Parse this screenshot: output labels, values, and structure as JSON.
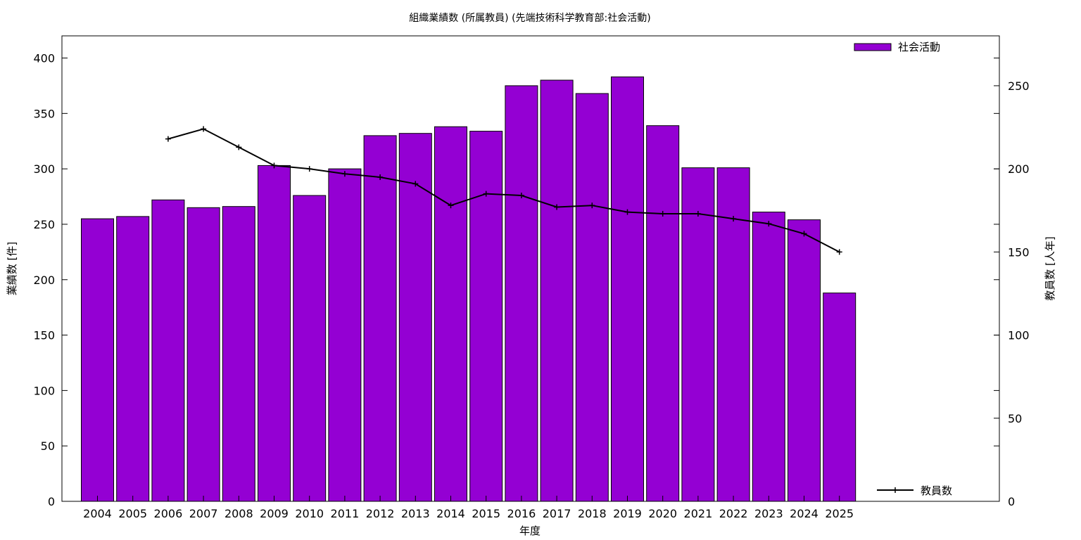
{
  "chart_data": {
    "type": "bar",
    "title": "組織業績数 (所属教員) (先端技術科学教育部:社会活動)",
    "xlabel": "年度",
    "ylabel": "業績数 [件]",
    "y2label": "教員数 [人年]",
    "categories": [
      "2004",
      "2005",
      "2006",
      "2007",
      "2008",
      "2009",
      "2010",
      "2011",
      "2012",
      "2013",
      "2014",
      "2015",
      "2016",
      "2017",
      "2018",
      "2019",
      "2020",
      "2021",
      "2022",
      "2023",
      "2024",
      "2025"
    ],
    "ylim": [
      0,
      420
    ],
    "y2lim": [
      0,
      280
    ],
    "yticks": [
      0,
      50,
      100,
      150,
      200,
      250,
      300,
      350,
      400
    ],
    "y2ticks": [
      0,
      50,
      100,
      150,
      200,
      250
    ],
    "grid": false,
    "legend_position": "top-right (bars), bottom-right (line)",
    "series": [
      {
        "name": "社会活動",
        "type": "bar",
        "axis": "left",
        "color": "#9400d3",
        "values": [
          255,
          257,
          272,
          265,
          266,
          303,
          276,
          300,
          330,
          332,
          338,
          334,
          375,
          380,
          368,
          383,
          339,
          301,
          301,
          261,
          254,
          188
        ]
      },
      {
        "name": "教員数",
        "type": "line",
        "axis": "right",
        "color": "#000000",
        "values": [
          null,
          null,
          218,
          224,
          213,
          202,
          200,
          197,
          195,
          191,
          178,
          185,
          184,
          177,
          178,
          174,
          173,
          173,
          170,
          167,
          161,
          150
        ]
      }
    ]
  }
}
